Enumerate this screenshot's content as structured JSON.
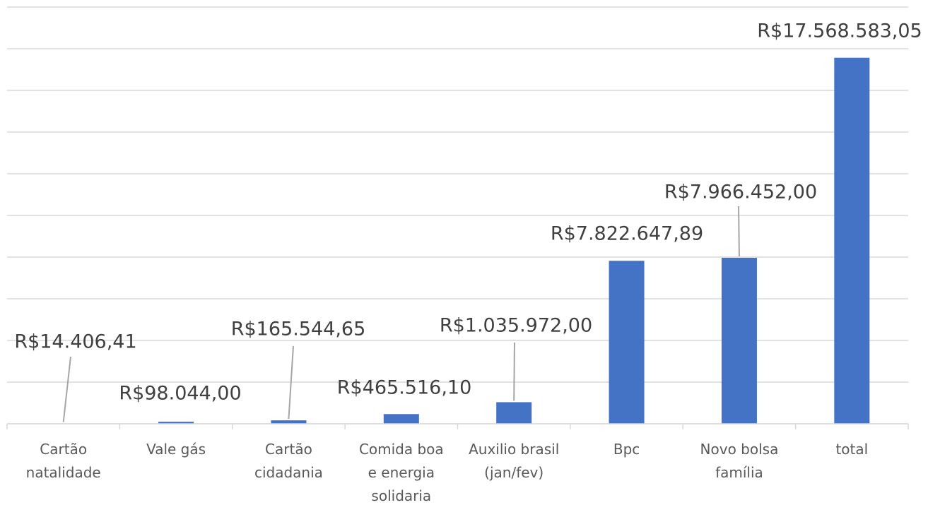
{
  "chart_data": {
    "type": "bar",
    "categories": [
      "Cartão\nnatalidade",
      "Vale gás",
      "Cartão\ncidadania",
      "Comida boa\ne energia\nsolidaria",
      "Auxilio brasil\n(jan/fev)",
      "Bpc",
      "Novo bolsa\nfamília",
      "total"
    ],
    "values": [
      14406.41,
      98044.0,
      165544.65,
      465516.1,
      1035972.0,
      7822647.89,
      7966452.0,
      17568583.05
    ],
    "value_labels": [
      "R$14.406,41",
      "R$98.044,00",
      "R$165.544,65",
      "R$465.516,10",
      "R$1.035.972,00",
      "R$7.822.647,89",
      "R$7.966.452,00",
      "R$17.568.583,05"
    ],
    "color": "#4472c4",
    "ylim": [
      0,
      20000000
    ],
    "yticks": [
      0,
      2000000,
      4000000,
      6000000,
      8000000,
      10000000,
      12000000,
      14000000,
      16000000,
      18000000,
      20000000
    ],
    "grid": true
  }
}
